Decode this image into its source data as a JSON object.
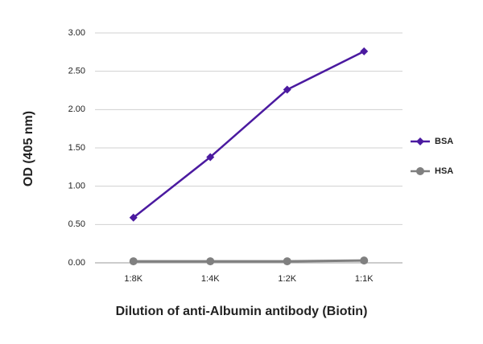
{
  "chart_data": {
    "type": "line",
    "x_label": "Dilution of anti-Albumin antibody (Biotin)",
    "y_label": "OD (405 nm)",
    "categories": [
      "1:8K",
      "1:4K",
      "1:2K",
      "1:1K"
    ],
    "series": [
      {
        "name": "BSA",
        "color": "#4b1aa0",
        "marker": "diamond",
        "values": [
          0.59,
          1.38,
          2.26,
          2.76
        ]
      },
      {
        "name": "HSA",
        "color": "#808080",
        "marker": "circle",
        "values": [
          0.02,
          0.02,
          0.02,
          0.03
        ]
      }
    ],
    "ylim": [
      0,
      3
    ],
    "yticks": [
      {
        "value": 0,
        "label": "0.00"
      },
      {
        "value": 0.5,
        "label": "0.50"
      },
      {
        "value": 1,
        "label": "1.00"
      },
      {
        "value": 1.5,
        "label": "1.50"
      },
      {
        "value": 2,
        "label": "2.00"
      },
      {
        "value": 2.5,
        "label": "2.50"
      },
      {
        "value": 3,
        "label": "3.00"
      }
    ],
    "grid": true,
    "legend": "right"
  }
}
